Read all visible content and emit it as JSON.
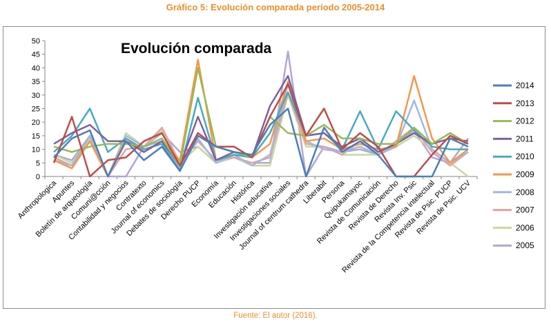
{
  "caption": "Gráfico 5: Evolución comparada período 2005-2014",
  "source": "Fuente: El autor (2016).",
  "chart_data": {
    "type": "line",
    "title": "Evolución comparada",
    "ylim": [
      0,
      50
    ],
    "yticks": [
      0,
      5,
      10,
      15,
      20,
      25,
      30,
      35,
      40,
      45,
      50
    ],
    "grid": false,
    "legend_position": "right",
    "categories": [
      "Anthropologica",
      "Apuntes",
      "Boletín de arqueología",
      "Comuni@cción",
      "Contabilidad y negocios",
      "Contratexto",
      "Journal of economics",
      "Debates de sociología",
      "Derecho PUCP",
      "Economía",
      "Educación",
      "Histórica",
      "Investigación educativa",
      "Investigaciones sociales",
      "Journal of centrum cathedra",
      "Liberabit",
      "Persona",
      "Quipukamayoc",
      "Revista de Comunicación",
      "Revista de Derecho",
      "Revista Inv. Psic",
      "Revista de la Competencia intelectual",
      "Revista de Psic. PUCP",
      "Revista de Psic. UCV"
    ],
    "series": [
      {
        "name": "2014",
        "color": "#4a7ebb",
        "values": [
          7,
          14,
          17,
          0,
          13,
          6,
          11,
          2,
          15,
          11,
          9,
          8,
          19,
          25,
          0,
          18,
          9,
          13,
          8,
          0,
          0,
          0,
          14,
          11
        ]
      },
      {
        "name": "2013",
        "color": "#be4b48",
        "values": [
          5,
          22,
          0,
          6,
          7,
          13,
          16,
          4,
          16,
          11,
          11,
          7,
          22,
          34,
          15,
          25,
          10,
          16,
          11,
          0,
          0,
          8,
          15,
          12
        ]
      },
      {
        "name": "2012",
        "color": "#98b954",
        "values": [
          11,
          9,
          11,
          12,
          12,
          11,
          14,
          4,
          40,
          11,
          9,
          7,
          22,
          16,
          15,
          19,
          14,
          14,
          12,
          12,
          18,
          12,
          16,
          12
        ]
      },
      {
        "name": "2011",
        "color": "#7d60a0",
        "values": [
          12,
          16,
          19,
          13,
          13,
          9,
          13,
          4,
          22,
          6,
          9,
          7,
          26,
          37,
          15,
          16,
          11,
          14,
          9,
          12,
          16,
          12,
          14,
          13
        ]
      },
      {
        "name": "2010",
        "color": "#46aac5",
        "values": [
          9,
          15,
          25,
          9,
          14,
          10,
          12,
          2,
          29,
          6,
          8,
          7,
          16,
          31,
          15,
          16,
          10,
          24,
          10,
          24,
          17,
          11,
          10,
          10
        ]
      },
      {
        "name": "2009",
        "color": "#f79646",
        "values": [
          6,
          3,
          13,
          0,
          14,
          9,
          13,
          6,
          43,
          6,
          8,
          7,
          12,
          35,
          13,
          14,
          10,
          12,
          10,
          11,
          37,
          14,
          5,
          10
        ]
      },
      {
        "name": "2008",
        "color": "#a0b8e0",
        "values": [
          6,
          4,
          15,
          0,
          15,
          11,
          13,
          3,
          14,
          5,
          8,
          4,
          8,
          34,
          13,
          10,
          9,
          11,
          8,
          11,
          28,
          10,
          5,
          9
        ]
      },
      {
        "name": "2007",
        "color": "#e4a19e",
        "values": [
          7,
          4,
          13,
          0,
          10,
          11,
          18,
          5,
          13,
          6,
          7,
          5,
          7,
          31,
          12,
          11,
          8,
          13,
          8,
          13,
          18,
          9,
          4,
          9
        ]
      },
      {
        "name": "2006",
        "color": "#c6d9a0",
        "values": [
          8,
          5,
          14,
          0,
          16,
          11,
          17,
          5,
          11,
          5,
          7,
          4,
          4,
          30,
          11,
          11,
          8,
          8,
          8,
          11,
          15,
          10,
          5,
          0
        ]
      },
      {
        "name": "2005",
        "color": "#b3a5d1",
        "values": [
          8,
          6,
          15,
          0,
          0,
          11,
          16,
          9,
          11,
          5,
          7,
          5,
          5,
          46,
          0,
          11,
          9,
          10,
          8,
          12,
          17,
          7,
          5,
          14
        ]
      }
    ]
  }
}
